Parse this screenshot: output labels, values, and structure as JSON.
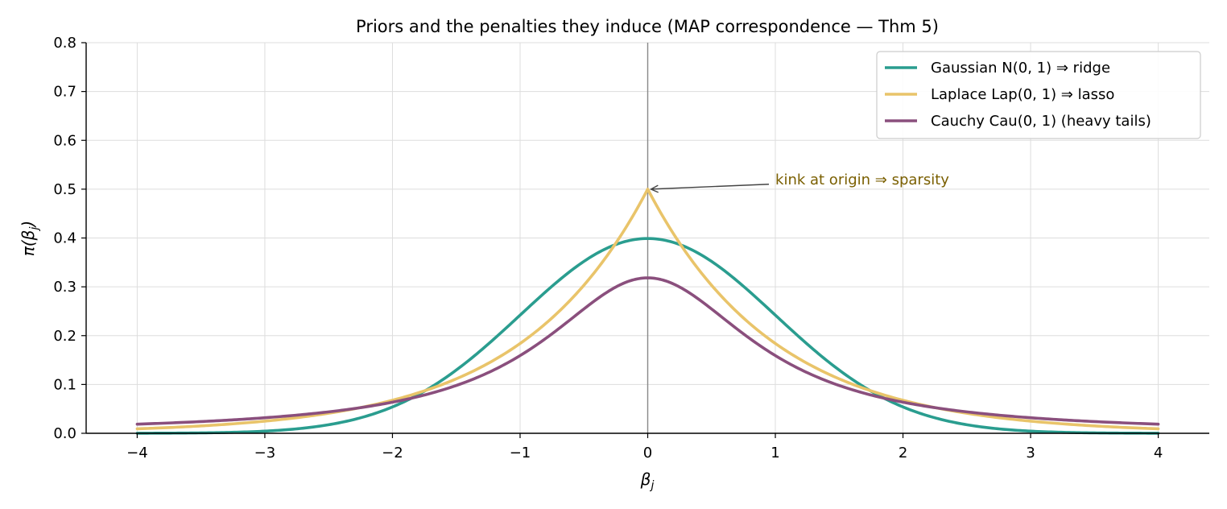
{
  "chart_data": {
    "type": "line",
    "title": "Priors and the penalties they induce (MAP correspondence — Thm 5)",
    "xlabel": "β",
    "xlabel_sub": "j",
    "ylabel": "π(β",
    "ylabel_sub": "j",
    "ylabel_close": ")",
    "xlim": [
      -4.4,
      4.4
    ],
    "ylim": [
      0,
      0.8
    ],
    "x_range": [
      -4,
      4
    ],
    "xticks": [
      -4,
      -3,
      -2,
      -1,
      0,
      1,
      2,
      3,
      4
    ],
    "xtick_labels": [
      "−4",
      "−3",
      "−2",
      "−1",
      "0",
      "1",
      "2",
      "3",
      "4"
    ],
    "yticks": [
      0,
      0.1,
      0.2,
      0.3,
      0.4,
      0.5,
      0.6,
      0.7,
      0.8
    ],
    "ytick_labels": [
      "0.0",
      "0.1",
      "0.2",
      "0.3",
      "0.4",
      "0.5",
      "0.6",
      "0.7",
      "0.8"
    ],
    "grid": true,
    "vertical_reference_line_x": 0,
    "legend_position": "top-right",
    "series": [
      {
        "name": "Gaussian  N(0, 1)  ⇒  ridge",
        "density": "gaussian",
        "params": {
          "mu": 0,
          "sigma": 1
        },
        "peak_value": 0.399,
        "color": "#2a9d8f"
      },
      {
        "name": "Laplace  Lap(0, 1)  ⇒  lasso",
        "density": "laplace",
        "params": {
          "mu": 0,
          "b": 1
        },
        "peak_value": 0.5,
        "color": "#e9c46a"
      },
      {
        "name": "Cauchy  Cau(0, 1)  (heavy tails)",
        "density": "cauchy",
        "params": {
          "x0": 0,
          "gamma": 1
        },
        "peak_value": 0.318,
        "color": "#8a4f7d"
      }
    ],
    "annotations": [
      {
        "text": "kink at origin ⇒ sparsity",
        "point": [
          0,
          0.5
        ],
        "text_at": [
          1.0,
          0.52
        ],
        "color": "#7a5f00"
      }
    ]
  }
}
